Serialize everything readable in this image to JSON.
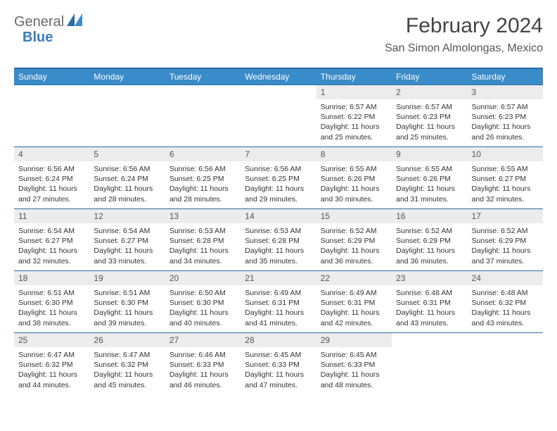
{
  "logo": {
    "part1": "General",
    "part2": "Blue"
  },
  "title": "February 2024",
  "location": "San Simon Almolongas, Mexico",
  "colors": {
    "header_bg": "#3a8bc9",
    "header_border": "#2a6ea8",
    "daynum_bg": "#ececec",
    "text": "#333333",
    "logo_gray": "#6a6a6a",
    "logo_blue": "#3a7bbf"
  },
  "weekdays": [
    "Sunday",
    "Monday",
    "Tuesday",
    "Wednesday",
    "Thursday",
    "Friday",
    "Saturday"
  ],
  "weeks": [
    [
      null,
      null,
      null,
      null,
      {
        "n": "1",
        "sr": "6:57 AM",
        "ss": "6:22 PM",
        "dl": "11 hours and 25 minutes."
      },
      {
        "n": "2",
        "sr": "6:57 AM",
        "ss": "6:23 PM",
        "dl": "11 hours and 25 minutes."
      },
      {
        "n": "3",
        "sr": "6:57 AM",
        "ss": "6:23 PM",
        "dl": "11 hours and 26 minutes."
      }
    ],
    [
      {
        "n": "4",
        "sr": "6:56 AM",
        "ss": "6:24 PM",
        "dl": "11 hours and 27 minutes."
      },
      {
        "n": "5",
        "sr": "6:56 AM",
        "ss": "6:24 PM",
        "dl": "11 hours and 28 minutes."
      },
      {
        "n": "6",
        "sr": "6:56 AM",
        "ss": "6:25 PM",
        "dl": "11 hours and 28 minutes."
      },
      {
        "n": "7",
        "sr": "6:56 AM",
        "ss": "6:25 PM",
        "dl": "11 hours and 29 minutes."
      },
      {
        "n": "8",
        "sr": "6:55 AM",
        "ss": "6:26 PM",
        "dl": "11 hours and 30 minutes."
      },
      {
        "n": "9",
        "sr": "6:55 AM",
        "ss": "6:26 PM",
        "dl": "11 hours and 31 minutes."
      },
      {
        "n": "10",
        "sr": "6:55 AM",
        "ss": "6:27 PM",
        "dl": "11 hours and 32 minutes."
      }
    ],
    [
      {
        "n": "11",
        "sr": "6:54 AM",
        "ss": "6:27 PM",
        "dl": "11 hours and 32 minutes."
      },
      {
        "n": "12",
        "sr": "6:54 AM",
        "ss": "6:27 PM",
        "dl": "11 hours and 33 minutes."
      },
      {
        "n": "13",
        "sr": "6:53 AM",
        "ss": "6:28 PM",
        "dl": "11 hours and 34 minutes."
      },
      {
        "n": "14",
        "sr": "6:53 AM",
        "ss": "6:28 PM",
        "dl": "11 hours and 35 minutes."
      },
      {
        "n": "15",
        "sr": "6:52 AM",
        "ss": "6:29 PM",
        "dl": "11 hours and 36 minutes."
      },
      {
        "n": "16",
        "sr": "6:52 AM",
        "ss": "6:29 PM",
        "dl": "11 hours and 36 minutes."
      },
      {
        "n": "17",
        "sr": "6:52 AM",
        "ss": "6:29 PM",
        "dl": "11 hours and 37 minutes."
      }
    ],
    [
      {
        "n": "18",
        "sr": "6:51 AM",
        "ss": "6:30 PM",
        "dl": "11 hours and 38 minutes."
      },
      {
        "n": "19",
        "sr": "6:51 AM",
        "ss": "6:30 PM",
        "dl": "11 hours and 39 minutes."
      },
      {
        "n": "20",
        "sr": "6:50 AM",
        "ss": "6:30 PM",
        "dl": "11 hours and 40 minutes."
      },
      {
        "n": "21",
        "sr": "6:49 AM",
        "ss": "6:31 PM",
        "dl": "11 hours and 41 minutes."
      },
      {
        "n": "22",
        "sr": "6:49 AM",
        "ss": "6:31 PM",
        "dl": "11 hours and 42 minutes."
      },
      {
        "n": "23",
        "sr": "6:48 AM",
        "ss": "6:31 PM",
        "dl": "11 hours and 43 minutes."
      },
      {
        "n": "24",
        "sr": "6:48 AM",
        "ss": "6:32 PM",
        "dl": "11 hours and 43 minutes."
      }
    ],
    [
      {
        "n": "25",
        "sr": "6:47 AM",
        "ss": "6:32 PM",
        "dl": "11 hours and 44 minutes."
      },
      {
        "n": "26",
        "sr": "6:47 AM",
        "ss": "6:32 PM",
        "dl": "11 hours and 45 minutes."
      },
      {
        "n": "27",
        "sr": "6:46 AM",
        "ss": "6:33 PM",
        "dl": "11 hours and 46 minutes."
      },
      {
        "n": "28",
        "sr": "6:45 AM",
        "ss": "6:33 PM",
        "dl": "11 hours and 47 minutes."
      },
      {
        "n": "29",
        "sr": "6:45 AM",
        "ss": "6:33 PM",
        "dl": "11 hours and 48 minutes."
      },
      null,
      null
    ]
  ],
  "labels": {
    "sunrise": "Sunrise: ",
    "sunset": "Sunset: ",
    "daylight": "Daylight: "
  }
}
